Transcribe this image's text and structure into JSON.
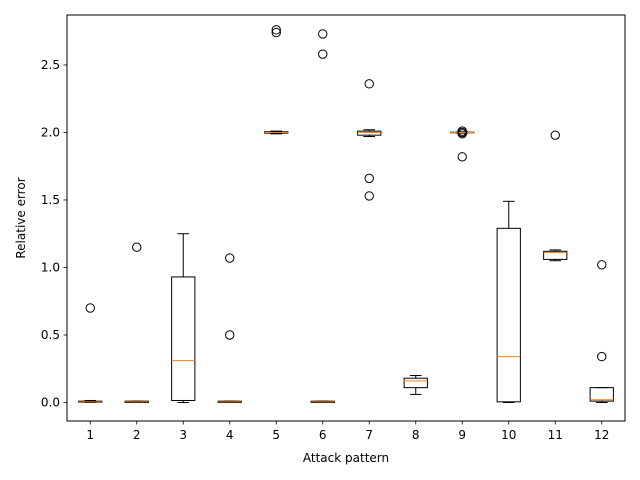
{
  "chart_data": {
    "type": "boxplot",
    "xlabel": "Attack pattern",
    "ylabel": "Relative error",
    "xlim": [
      0.5,
      12.5
    ],
    "ylim": [
      -0.137,
      2.87
    ],
    "yticks": [
      0.0,
      0.5,
      1.0,
      1.5,
      2.0,
      2.5
    ],
    "ytick_labels": [
      "0.0",
      "0.5",
      "1.0",
      "1.5",
      "2.0",
      "2.5"
    ],
    "categories": [
      "1",
      "2",
      "3",
      "4",
      "5",
      "6",
      "7",
      "8",
      "9",
      "10",
      "11",
      "12"
    ],
    "grid": false,
    "colors": {
      "box": "#000000",
      "median": "#ff7f0e",
      "flier": "#000000"
    },
    "boxes": [
      {
        "label": "1",
        "whislo": 0.0,
        "q1": 0.002,
        "med": 0.005,
        "q3": 0.01,
        "whishi": 0.015,
        "fliers": [
          0.7
        ]
      },
      {
        "label": "2",
        "whislo": 0.0,
        "q1": 0.0,
        "med": 0.005,
        "q3": 0.01,
        "whishi": 0.01,
        "fliers": [
          1.15
        ]
      },
      {
        "label": "3",
        "whislo": 0.0,
        "q1": 0.015,
        "med": 0.31,
        "q3": 0.93,
        "whishi": 1.25,
        "fliers": []
      },
      {
        "label": "4",
        "whislo": 0.0,
        "q1": 0.0,
        "med": 0.005,
        "q3": 0.01,
        "whishi": 0.01,
        "fliers": [
          0.5,
          1.07
        ]
      },
      {
        "label": "5",
        "whislo": 1.99,
        "q1": 1.995,
        "med": 2.0,
        "q3": 2.005,
        "whishi": 2.01,
        "fliers": [
          2.74,
          2.76
        ]
      },
      {
        "label": "6",
        "whislo": 0.0,
        "q1": 0.0,
        "med": 0.005,
        "q3": 0.01,
        "whishi": 0.01,
        "fliers": [
          2.58,
          2.73
        ]
      },
      {
        "label": "7",
        "whislo": 1.97,
        "q1": 1.98,
        "med": 2.0,
        "q3": 2.01,
        "whishi": 2.02,
        "fliers": [
          1.53,
          1.66,
          2.36
        ]
      },
      {
        "label": "8",
        "whislo": 0.06,
        "q1": 0.11,
        "med": 0.16,
        "q3": 0.18,
        "whishi": 0.2,
        "fliers": []
      },
      {
        "label": "9",
        "whislo": 1.995,
        "q1": 1.998,
        "med": 2.0,
        "q3": 2.002,
        "whishi": 2.005,
        "fliers": [
          1.82,
          1.99,
          2.0,
          2.01
        ]
      },
      {
        "label": "10",
        "whislo": 0.0,
        "q1": 0.005,
        "med": 0.34,
        "q3": 1.29,
        "whishi": 1.49,
        "fliers": []
      },
      {
        "label": "11",
        "whislo": 1.05,
        "q1": 1.06,
        "med": 1.11,
        "q3": 1.12,
        "whishi": 1.13,
        "fliers": [
          1.98
        ]
      },
      {
        "label": "12",
        "whislo": 0.0,
        "q1": 0.01,
        "med": 0.02,
        "q3": 0.11,
        "whishi": 0.11,
        "fliers": [
          0.34,
          1.02
        ]
      }
    ]
  }
}
